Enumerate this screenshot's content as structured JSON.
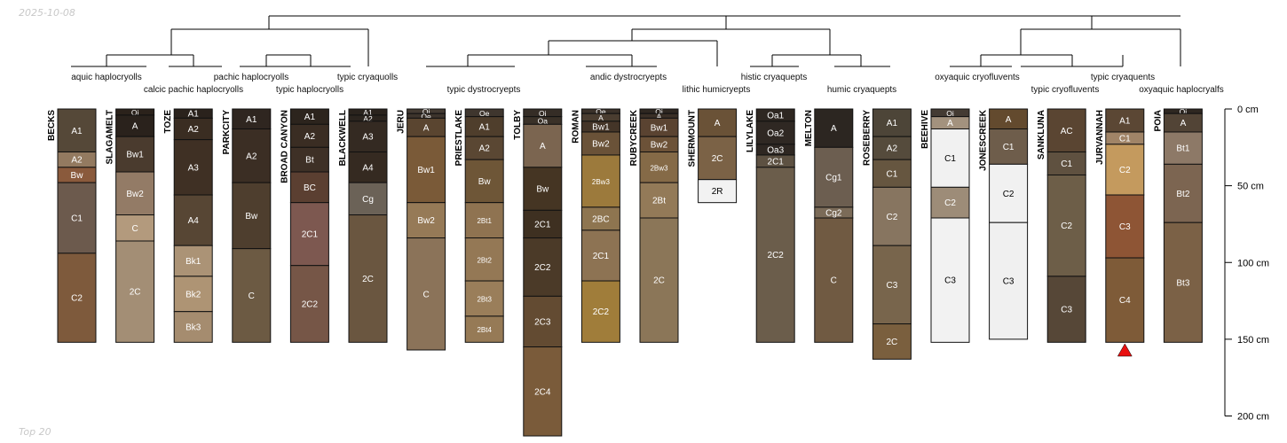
{
  "header": {
    "date": "2025-10-08"
  },
  "footer": {
    "note": "Top 20"
  },
  "chart_data": {
    "type": "soil-profile-sketch",
    "depth_axis": {
      "unit": "cm",
      "range": [
        0,
        200
      ],
      "ticks": [
        {
          "value": 0,
          "label": "0 cm"
        },
        {
          "value": 50,
          "label": "50 cm"
        },
        {
          "value": 100,
          "label": "100 cm"
        },
        {
          "value": 150,
          "label": "150 cm"
        },
        {
          "value": 200,
          "label": "200 cm"
        }
      ]
    },
    "taxa_labels": [
      "aquic haplocryolls",
      "calcic pachic haplocryolls",
      "pachic haplocryolls",
      "typic haplocryolls",
      "typic cryaquolls",
      "typic dystrocryepts",
      "andic dystrocryepts",
      "lithic humicryepts",
      "histic cryaquepts",
      "humic cryaquepts",
      "oxyaquic cryofluvents",
      "typic cryofluvents",
      "typic cryaquents",
      "oxyaquic haplocryalfs"
    ],
    "profiles": [
      {
        "name": "BECKS",
        "horizons": [
          {
            "name": "A1",
            "top": 0,
            "bottom": 28,
            "color": "#554838"
          },
          {
            "name": "A2",
            "top": 28,
            "bottom": 38,
            "color": "#937a60"
          },
          {
            "name": "Bw",
            "top": 38,
            "bottom": 48,
            "color": "#8a5a3c"
          },
          {
            "name": "C1",
            "top": 48,
            "bottom": 94,
            "color": "#6c5a4d"
          },
          {
            "name": "C2",
            "top": 94,
            "bottom": 152,
            "color": "#7e5a3c"
          }
        ]
      },
      {
        "name": "SLAGAMELT",
        "horizons": [
          {
            "name": "Oi",
            "top": 0,
            "bottom": 4,
            "color": "#2b221b"
          },
          {
            "name": "A",
            "top": 4,
            "bottom": 18,
            "color": "#2a221c"
          },
          {
            "name": "Bw1",
            "top": 18,
            "bottom": 41,
            "color": "#4a3b2e"
          },
          {
            "name": "Bw2",
            "top": 41,
            "bottom": 69,
            "color": "#937b66"
          },
          {
            "name": "C",
            "top": 69,
            "bottom": 86,
            "color": "#b39a7d"
          },
          {
            "name": "2C",
            "top": 86,
            "bottom": 152,
            "color": "#a38e75"
          }
        ]
      },
      {
        "name": "TOZE",
        "horizons": [
          {
            "name": "A1",
            "top": 0,
            "bottom": 6,
            "color": "#2a221c"
          },
          {
            "name": "A2",
            "top": 6,
            "bottom": 20,
            "color": "#3a2d22"
          },
          {
            "name": "A3",
            "top": 20,
            "bottom": 56,
            "color": "#3f3024"
          },
          {
            "name": "A4",
            "top": 56,
            "bottom": 89,
            "color": "#574634"
          },
          {
            "name": "Bk1",
            "top": 89,
            "bottom": 109,
            "color": "#ab9376"
          },
          {
            "name": "Bk2",
            "top": 109,
            "bottom": 132,
            "color": "#ae9474"
          },
          {
            "name": "Bk3",
            "top": 132,
            "bottom": 152,
            "color": "#a58c6f"
          }
        ]
      },
      {
        "name": "PARKCITY",
        "horizons": [
          {
            "name": "A1",
            "top": 0,
            "bottom": 13,
            "color": "#2f2620"
          },
          {
            "name": "A2",
            "top": 13,
            "bottom": 48,
            "color": "#3b2e24"
          },
          {
            "name": "Bw",
            "top": 48,
            "bottom": 91,
            "color": "#4e3e2e"
          },
          {
            "name": "C",
            "top": 91,
            "bottom": 152,
            "color": "#6c5a43"
          }
        ]
      },
      {
        "name": "BROAD CANYON",
        "horizons": [
          {
            "name": "A1",
            "top": 0,
            "bottom": 10,
            "color": "#2c241d"
          },
          {
            "name": "A2",
            "top": 10,
            "bottom": 25,
            "color": "#3a2d23"
          },
          {
            "name": "Bt",
            "top": 25,
            "bottom": 41,
            "color": "#3e3026"
          },
          {
            "name": "BC",
            "top": 41,
            "bottom": 61,
            "color": "#5b3f31"
          },
          {
            "name": "2C1",
            "top": 61,
            "bottom": 102,
            "color": "#7d5850"
          },
          {
            "name": "2C2",
            "top": 102,
            "bottom": 152,
            "color": "#765647"
          }
        ]
      },
      {
        "name": "BLACKWELL",
        "horizons": [
          {
            "name": "A1",
            "top": 0,
            "bottom": 4,
            "color": "#2a231d"
          },
          {
            "name": "A2",
            "top": 4,
            "bottom": 8,
            "color": "#2b241e"
          },
          {
            "name": "A3",
            "top": 8,
            "bottom": 28,
            "color": "#342a22"
          },
          {
            "name": "A4",
            "top": 28,
            "bottom": 48,
            "color": "#352a21"
          },
          {
            "name": "Cg",
            "top": 48,
            "bottom": 69,
            "color": "#6b6257"
          },
          {
            "name": "2C",
            "top": 69,
            "bottom": 152,
            "color": "#6a5640"
          }
        ]
      },
      {
        "name": "JERU",
        "horizons": [
          {
            "name": "Oi",
            "top": 0,
            "bottom": 3,
            "color": "#433a32"
          },
          {
            "name": "Oe",
            "top": 3,
            "bottom": 6,
            "color": "#3d342c"
          },
          {
            "name": "A",
            "top": 6,
            "bottom": 18,
            "color": "#5a4530"
          },
          {
            "name": "Bw1",
            "top": 18,
            "bottom": 61,
            "color": "#7a5a38"
          },
          {
            "name": "Bw2",
            "top": 61,
            "bottom": 84,
            "color": "#967a57"
          },
          {
            "name": "C",
            "top": 84,
            "bottom": 157,
            "color": "#8b7359"
          }
        ]
      },
      {
        "name": "PRIESTLAKE",
        "horizons": [
          {
            "name": "Oe",
            "top": 0,
            "bottom": 5,
            "color": "#3f362e"
          },
          {
            "name": "A1",
            "top": 5,
            "bottom": 18,
            "color": "#4f3e2c"
          },
          {
            "name": "A2",
            "top": 18,
            "bottom": 33,
            "color": "#5a4733"
          },
          {
            "name": "Bw",
            "top": 33,
            "bottom": 61,
            "color": "#6e5637"
          },
          {
            "name": "2Bt1",
            "top": 61,
            "bottom": 84,
            "color": "#8f7351"
          },
          {
            "name": "2Bt2",
            "top": 84,
            "bottom": 112,
            "color": "#947855"
          },
          {
            "name": "2Bt3",
            "top": 112,
            "bottom": 135,
            "color": "#9a7e5a"
          },
          {
            "name": "2Bt4",
            "top": 135,
            "bottom": 152,
            "color": "#967a56"
          }
        ]
      },
      {
        "name": "TOLBY",
        "horizons": [
          {
            "name": "Oi",
            "top": 0,
            "bottom": 5,
            "color": "#352d26"
          },
          {
            "name": "Oa",
            "top": 5,
            "bottom": 10,
            "color": "#3a3128"
          },
          {
            "name": "A",
            "top": 10,
            "bottom": 38,
            "color": "#7b6550"
          },
          {
            "name": "Bw",
            "top": 38,
            "bottom": 66,
            "color": "#453523"
          },
          {
            "name": "2C1",
            "top": 66,
            "bottom": 84,
            "color": "#3e3021"
          },
          {
            "name": "2C2",
            "top": 84,
            "bottom": 122,
            "color": "#4b3a28"
          },
          {
            "name": "2C3",
            "top": 122,
            "bottom": 155,
            "color": "#634b32"
          },
          {
            "name": "2C4",
            "top": 155,
            "bottom": 213,
            "color": "#7a5b3a"
          }
        ]
      },
      {
        "name": "ROMAN",
        "horizons": [
          {
            "name": "Oe",
            "top": 0,
            "bottom": 3,
            "color": "#3a3129"
          },
          {
            "name": "A",
            "top": 3,
            "bottom": 8,
            "color": "#4a3d30"
          },
          {
            "name": "Bw1",
            "top": 8,
            "bottom": 15,
            "color": "#443528"
          },
          {
            "name": "Bw2",
            "top": 15,
            "bottom": 30,
            "color": "#6a5238"
          },
          {
            "name": "2Bw3",
            "top": 30,
            "bottom": 64,
            "color": "#9c7a3c"
          },
          {
            "name": "2BC",
            "top": 64,
            "bottom": 79,
            "color": "#8e7550"
          },
          {
            "name": "2C1",
            "top": 79,
            "bottom": 112,
            "color": "#8d7353"
          },
          {
            "name": "2C2",
            "top": 112,
            "bottom": 152,
            "color": "#a07d3a"
          }
        ]
      },
      {
        "name": "RUBYCREEK",
        "horizons": [
          {
            "name": "Oi",
            "top": 0,
            "bottom": 3,
            "color": "#2e2721"
          },
          {
            "name": "A",
            "top": 3,
            "bottom": 6,
            "color": "#3a2f26"
          },
          {
            "name": "Bw1",
            "top": 6,
            "bottom": 18,
            "color": "#5a4331"
          },
          {
            "name": "Bw2",
            "top": 18,
            "bottom": 28,
            "color": "#6c5238"
          },
          {
            "name": "2Bw3",
            "top": 28,
            "bottom": 48,
            "color": "#856a47"
          },
          {
            "name": "2Bt",
            "top": 48,
            "bottom": 71,
            "color": "#937a58"
          },
          {
            "name": "2C",
            "top": 71,
            "bottom": 152,
            "color": "#8b7658"
          }
        ]
      },
      {
        "name": "SHERMOUNT",
        "horizons": [
          {
            "name": "A",
            "top": 0,
            "bottom": 18,
            "color": "#6a5237"
          },
          {
            "name": "2C",
            "top": 18,
            "bottom": 46,
            "color": "#7b6246"
          },
          {
            "name": "2R",
            "top": 46,
            "bottom": 61,
            "color": "#f2f2f2"
          }
        ]
      },
      {
        "name": "LILYLAKE",
        "horizons": [
          {
            "name": "Oa1",
            "top": 0,
            "bottom": 8,
            "color": "#2e2721"
          },
          {
            "name": "Oa2",
            "top": 8,
            "bottom": 23,
            "color": "#2f2823"
          },
          {
            "name": "Oa3",
            "top": 23,
            "bottom": 30,
            "color": "#2e2722"
          },
          {
            "name": "2C1",
            "top": 30,
            "bottom": 38,
            "color": "#5d5142"
          },
          {
            "name": "2C2",
            "top": 38,
            "bottom": 152,
            "color": "#6b5d4b"
          }
        ]
      },
      {
        "name": "MELTON",
        "horizons": [
          {
            "name": "A",
            "top": 0,
            "bottom": 25,
            "color": "#2c2621"
          },
          {
            "name": "Cg1",
            "top": 25,
            "bottom": 64,
            "color": "#6c5e50"
          },
          {
            "name": "Cg2",
            "top": 64,
            "bottom": 71,
            "color": "#7b6b58"
          },
          {
            "name": "C",
            "top": 71,
            "bottom": 152,
            "color": "#705a42"
          }
        ]
      },
      {
        "name": "ROSEBERRY",
        "horizons": [
          {
            "name": "A1",
            "top": 0,
            "bottom": 18,
            "color": "#4d4538"
          },
          {
            "name": "A2",
            "top": 18,
            "bottom": 33,
            "color": "#554b3c"
          },
          {
            "name": "C1",
            "top": 33,
            "bottom": 51,
            "color": "#665640"
          },
          {
            "name": "C2",
            "top": 51,
            "bottom": 89,
            "color": "#877560"
          },
          {
            "name": "C3",
            "top": 89,
            "bottom": 140,
            "color": "#78654c"
          },
          {
            "name": "2C",
            "top": 140,
            "bottom": 163,
            "color": "#7a5f3e"
          }
        ]
      },
      {
        "name": "BEEHIVE",
        "horizons": [
          {
            "name": "Oi",
            "top": 0,
            "bottom": 5,
            "color": "#443b33"
          },
          {
            "name": "A",
            "top": 5,
            "bottom": 13,
            "color": "#a3927e"
          },
          {
            "name": "C1",
            "top": 13,
            "bottom": 51,
            "color": "#f1f1f1"
          },
          {
            "name": "C2",
            "top": 51,
            "bottom": 71,
            "color": "#9d8c78"
          },
          {
            "name": "C3",
            "top": 71,
            "bottom": 152,
            "color": "#f2f2f2"
          }
        ]
      },
      {
        "name": "JONESCREEK",
        "horizons": [
          {
            "name": "A",
            "top": 0,
            "bottom": 13,
            "color": "#634a2e"
          },
          {
            "name": "C1",
            "top": 13,
            "bottom": 36,
            "color": "#6e5d4b"
          },
          {
            "name": "C2",
            "top": 36,
            "bottom": 74,
            "color": "#f1f1f1"
          },
          {
            "name": "C3",
            "top": 74,
            "bottom": 150,
            "color": "#f0f0f0"
          }
        ]
      },
      {
        "name": "SANKLUNA",
        "horizons": [
          {
            "name": "AC",
            "top": 0,
            "bottom": 28,
            "color": "#5a4532"
          },
          {
            "name": "C1",
            "top": 28,
            "bottom": 43,
            "color": "#5f5140"
          },
          {
            "name": "C2",
            "top": 43,
            "bottom": 109,
            "color": "#6d5e48"
          },
          {
            "name": "C3",
            "top": 109,
            "bottom": 152,
            "color": "#564737"
          }
        ]
      },
      {
        "name": "JURVANNAH",
        "horizons": [
          {
            "name": "A1",
            "top": 0,
            "bottom": 15,
            "color": "#5b4734"
          },
          {
            "name": "C1",
            "top": 15,
            "bottom": 23,
            "color": "#a08467"
          },
          {
            "name": "C2",
            "top": 23,
            "bottom": 56,
            "color": "#c49a5e"
          },
          {
            "name": "C3",
            "top": 56,
            "bottom": 97,
            "color": "#8e5535"
          },
          {
            "name": "C4",
            "top": 97,
            "bottom": 152,
            "color": "#7e5b38"
          }
        ]
      },
      {
        "name": "POIA",
        "horizons": [
          {
            "name": "Oi",
            "top": 0,
            "bottom": 3,
            "color": "#2e2721"
          },
          {
            "name": "A",
            "top": 3,
            "bottom": 15,
            "color": "#524436"
          },
          {
            "name": "Bt1",
            "top": 15,
            "bottom": 36,
            "color": "#8d7967"
          },
          {
            "name": "Bt2",
            "top": 36,
            "bottom": 74,
            "color": "#7c6551"
          },
          {
            "name": "Bt3",
            "top": 74,
            "bottom": 152,
            "color": "#7b6146"
          }
        ]
      }
    ]
  }
}
